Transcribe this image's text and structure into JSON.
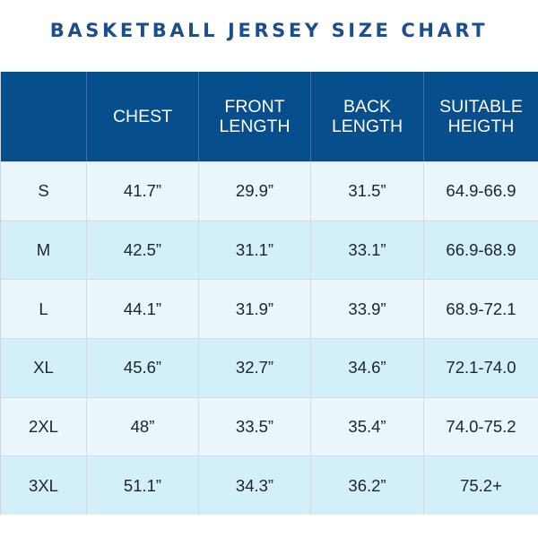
{
  "title": "BASKETBALL JERSEY SIZE CHART",
  "headers": [
    "",
    "CHEST",
    "FRONT\nLENGTH",
    "BACK\nLENGTH",
    "SUITABLE\nHEIGTH"
  ],
  "rows": [
    {
      "size": "S",
      "chest": "41.7”",
      "front_length": "29.9”",
      "back_length": "31.5”",
      "height": "64.9-66.9"
    },
    {
      "size": "M",
      "chest": "42.5”",
      "front_length": "31.1”",
      "back_length": "33.1”",
      "height": "66.9-68.9"
    },
    {
      "size": "L",
      "chest": "44.1”",
      "front_length": "31.9”",
      "back_length": "33.9”",
      "height": "68.9-72.1"
    },
    {
      "size": "XL",
      "chest": "45.6”",
      "front_length": "32.7”",
      "back_length": "34.6”",
      "height": "72.1-74.0"
    },
    {
      "size": "2XL",
      "chest": "48”",
      "front_length": "33.5”",
      "back_length": "35.4”",
      "height": "74.0-75.2"
    },
    {
      "size": "3XL",
      "chest": "51.1”",
      "front_length": "34.3”",
      "back_length": "36.2”",
      "height": "75.2+"
    }
  ],
  "colors": {
    "title": "#1d4e8c",
    "header_bg": "#064f8c",
    "row_light": "#eaf6fc",
    "row_alt": "#d3eff8"
  }
}
